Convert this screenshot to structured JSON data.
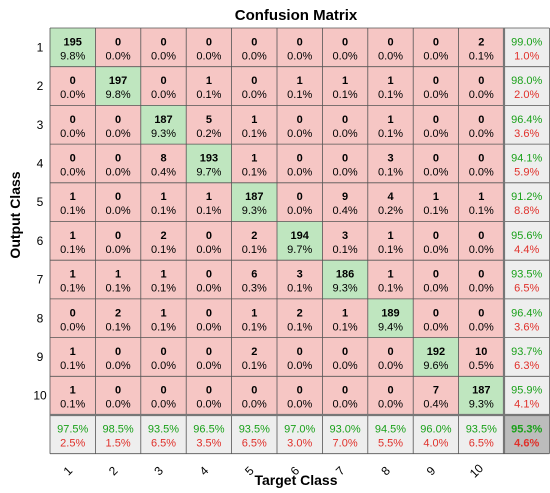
{
  "chart_data": {
    "type": "heatmap",
    "title": "Confusion Matrix",
    "xlabel": "Target Class",
    "ylabel": "Output Class",
    "classes": [
      "1",
      "2",
      "3",
      "4",
      "5",
      "6",
      "7",
      "8",
      "9",
      "10"
    ],
    "counts": [
      [
        195,
        0,
        0,
        0,
        0,
        0,
        0,
        0,
        0,
        2
      ],
      [
        0,
        197,
        0,
        1,
        0,
        1,
        1,
        1,
        0,
        0
      ],
      [
        0,
        0,
        187,
        5,
        1,
        0,
        0,
        1,
        0,
        0
      ],
      [
        0,
        0,
        8,
        193,
        1,
        0,
        0,
        3,
        0,
        0
      ],
      [
        1,
        0,
        1,
        1,
        187,
        0,
        9,
        4,
        1,
        1
      ],
      [
        1,
        0,
        2,
        0,
        2,
        194,
        3,
        1,
        0,
        0
      ],
      [
        1,
        1,
        1,
        0,
        6,
        3,
        186,
        1,
        0,
        0
      ],
      [
        0,
        2,
        1,
        0,
        1,
        2,
        1,
        189,
        0,
        0
      ],
      [
        1,
        0,
        0,
        0,
        2,
        0,
        0,
        0,
        192,
        10
      ],
      [
        1,
        0,
        0,
        0,
        0,
        0,
        0,
        0,
        7,
        187
      ]
    ],
    "percentages": [
      [
        "9.8%",
        "0.0%",
        "0.0%",
        "0.0%",
        "0.0%",
        "0.0%",
        "0.0%",
        "0.0%",
        "0.0%",
        "0.1%"
      ],
      [
        "0.0%",
        "9.8%",
        "0.0%",
        "0.1%",
        "0.0%",
        "0.1%",
        "0.1%",
        "0.1%",
        "0.0%",
        "0.0%"
      ],
      [
        "0.0%",
        "0.0%",
        "9.3%",
        "0.2%",
        "0.1%",
        "0.0%",
        "0.0%",
        "0.1%",
        "0.0%",
        "0.0%"
      ],
      [
        "0.0%",
        "0.0%",
        "0.4%",
        "9.7%",
        "0.1%",
        "0.0%",
        "0.0%",
        "0.1%",
        "0.0%",
        "0.0%"
      ],
      [
        "0.1%",
        "0.0%",
        "0.1%",
        "0.1%",
        "9.3%",
        "0.0%",
        "0.4%",
        "0.2%",
        "0.1%",
        "0.1%"
      ],
      [
        "0.1%",
        "0.0%",
        "0.1%",
        "0.0%",
        "0.1%",
        "9.7%",
        "0.1%",
        "0.1%",
        "0.0%",
        "0.0%"
      ],
      [
        "0.1%",
        "0.1%",
        "0.1%",
        "0.0%",
        "0.3%",
        "0.1%",
        "9.3%",
        "0.1%",
        "0.0%",
        "0.0%"
      ],
      [
        "0.0%",
        "0.1%",
        "0.1%",
        "0.0%",
        "0.1%",
        "0.1%",
        "0.1%",
        "9.4%",
        "0.0%",
        "0.0%"
      ],
      [
        "0.1%",
        "0.0%",
        "0.0%",
        "0.0%",
        "0.1%",
        "0.0%",
        "0.0%",
        "0.0%",
        "9.6%",
        "0.5%"
      ],
      [
        "0.1%",
        "0.0%",
        "0.0%",
        "0.0%",
        "0.0%",
        "0.0%",
        "0.0%",
        "0.0%",
        "0.4%",
        "9.3%"
      ]
    ],
    "row_summary": [
      [
        "99.0%",
        "1.0%"
      ],
      [
        "98.0%",
        "2.0%"
      ],
      [
        "96.4%",
        "3.6%"
      ],
      [
        "94.1%",
        "5.9%"
      ],
      [
        "91.2%",
        "8.8%"
      ],
      [
        "95.6%",
        "4.4%"
      ],
      [
        "93.5%",
        "6.5%"
      ],
      [
        "96.4%",
        "3.6%"
      ],
      [
        "93.7%",
        "6.3%"
      ],
      [
        "95.9%",
        "4.1%"
      ]
    ],
    "col_summary": [
      [
        "97.5%",
        "2.5%"
      ],
      [
        "98.5%",
        "1.5%"
      ],
      [
        "93.5%",
        "6.5%"
      ],
      [
        "96.5%",
        "3.5%"
      ],
      [
        "93.5%",
        "6.5%"
      ],
      [
        "97.0%",
        "3.0%"
      ],
      [
        "93.0%",
        "7.0%"
      ],
      [
        "94.5%",
        "5.5%"
      ],
      [
        "96.0%",
        "4.0%"
      ],
      [
        "93.5%",
        "6.5%"
      ]
    ],
    "overall": [
      "95.3%",
      "4.6%"
    ],
    "colors": {
      "correct": "#bfe6bf",
      "incorrect": "#f6c6c4",
      "summary": "#eeeeee",
      "overall": "#bcbcbc",
      "grid": "#555555",
      "good_text": "#1aa11a",
      "bad_text": "#e0302a"
    }
  }
}
